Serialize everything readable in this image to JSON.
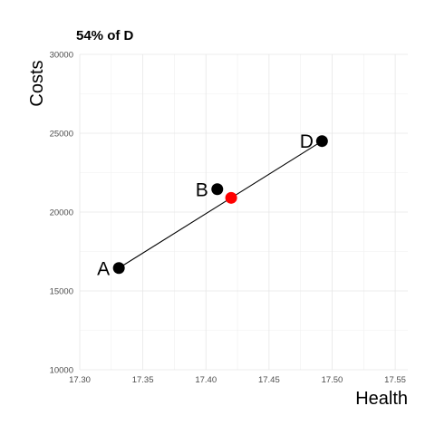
{
  "chart_data": {
    "type": "scatter",
    "title": "54% of D",
    "xlabel": "Health",
    "ylabel": "Costs",
    "xlim": [
      17.3,
      17.56
    ],
    "ylim": [
      10000,
      30000
    ],
    "x_ticks": [
      "17.30",
      "17.35",
      "17.40",
      "17.45",
      "17.50",
      "17.55"
    ],
    "y_ticks": [
      "10000",
      "15000",
      "20000",
      "25000",
      "30000"
    ],
    "grid": true,
    "points": [
      {
        "label": "A",
        "x": 17.331,
        "y": 16450,
        "color": "#000000"
      },
      {
        "label": "B",
        "x": 17.409,
        "y": 21450,
        "color": "#000000"
      },
      {
        "label": "D",
        "x": 17.492,
        "y": 24500,
        "color": "#000000"
      },
      {
        "label": "",
        "x": 17.42,
        "y": 20900,
        "color": "#ff0000"
      }
    ],
    "line": {
      "from": "A",
      "to": "D",
      "color": "#000000"
    }
  }
}
